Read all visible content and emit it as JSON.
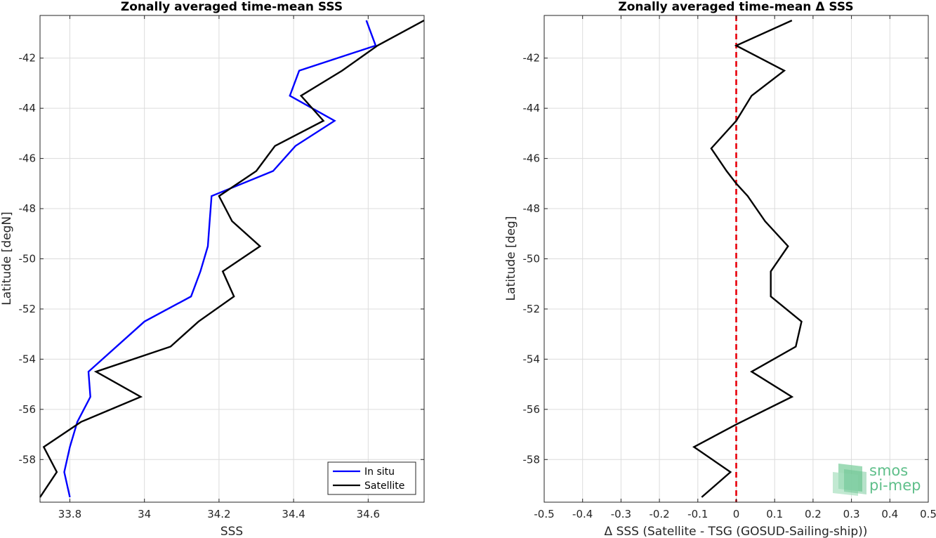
{
  "chart_data": [
    {
      "type": "line",
      "title": "Zonally averaged time-mean SSS",
      "xlabel": "SSS",
      "ylabel": "Latitude [degN]",
      "xlim": [
        33.72,
        34.75
      ],
      "ylim": [
        -59.7,
        -40.3
      ],
      "xticks": [
        33.8,
        34,
        34.2,
        34.4,
        34.6
      ],
      "xtick_labels": [
        "33.8",
        "34",
        "34.2",
        "34.4",
        "34.6"
      ],
      "yticks": [
        -42,
        -44,
        -46,
        -48,
        -50,
        -52,
        -54,
        -56,
        -58
      ],
      "ytick_labels": [
        "-42",
        "-44",
        "-46",
        "-48",
        "-50",
        "-52",
        "-54",
        "-56",
        "-58"
      ],
      "grid": true,
      "legend": "bottom-right",
      "series": [
        {
          "name": "In situ",
          "color": "#0000ff",
          "x": [
            34.595,
            34.62,
            34.415,
            34.39,
            34.51,
            34.405,
            34.345,
            34.18,
            34.175,
            34.17,
            34.15,
            34.125,
            34.0,
            33.85,
            33.855,
            33.82,
            33.8,
            33.785,
            33.8
          ],
          "y": [
            -40.5,
            -41.5,
            -42.5,
            -43.5,
            -44.5,
            -45.5,
            -46.5,
            -47.5,
            -48.5,
            -49.5,
            -50.5,
            -51.5,
            -52.5,
            -54.5,
            -55.5,
            -56.5,
            -57.5,
            -58.5,
            -59.5
          ]
        },
        {
          "name": "Satellite",
          "color": "#000000",
          "x": [
            34.75,
            34.625,
            34.53,
            34.42,
            34.48,
            34.35,
            34.3,
            34.2,
            34.235,
            34.31,
            34.21,
            34.24,
            34.145,
            34.07,
            33.87,
            33.99,
            33.83,
            33.73,
            33.765,
            33.72
          ],
          "y": [
            -40.5,
            -41.5,
            -42.5,
            -43.5,
            -44.5,
            -45.5,
            -46.5,
            -47.5,
            -48.5,
            -49.5,
            -50.5,
            -51.5,
            -52.5,
            -53.5,
            -54.5,
            -55.5,
            -56.5,
            -57.5,
            -58.5,
            -59.5
          ]
        }
      ]
    },
    {
      "type": "line",
      "title": "Zonally averaged time-mean Δ SSS",
      "xlabel": "Δ SSS (Satellite - TSG (GOSUD-Sailing-ship))",
      "ylabel": "Latitude [deg]",
      "xlim": [
        -0.5,
        0.5
      ],
      "ylim": [
        -59.7,
        -40.3
      ],
      "xticks": [
        -0.5,
        -0.4,
        -0.3,
        -0.2,
        -0.1,
        0,
        0.1,
        0.2,
        0.3,
        0.4,
        0.5
      ],
      "xtick_labels": [
        "-0.5",
        "-0.4",
        "-0.3",
        "-0.2",
        "-0.1",
        "0",
        "0.1",
        "0.2",
        "0.3",
        "0.4",
        "0.5"
      ],
      "yticks": [
        -42,
        -44,
        -46,
        -48,
        -50,
        -52,
        -54,
        -56,
        -58
      ],
      "ytick_labels": [
        "-42",
        "-44",
        "-46",
        "-48",
        "-50",
        "-52",
        "-54",
        "-56",
        "-58"
      ],
      "grid": true,
      "reference_line": {
        "x": 0,
        "color": "#e8000b",
        "style": "dashed"
      },
      "series": [
        {
          "color": "#000000",
          "x": [
            0.145,
            0.0,
            0.125,
            0.04,
            0.0,
            -0.065,
            -0.025,
            0.0,
            0.03,
            0.075,
            0.135,
            0.09,
            0.09,
            0.17,
            0.155,
            0.04,
            0.145,
            0.0,
            -0.11,
            -0.015,
            -0.09
          ],
          "y": [
            -40.5,
            -41.5,
            -42.5,
            -43.5,
            -44.5,
            -45.6,
            -46.5,
            -47.0,
            -47.5,
            -48.5,
            -49.5,
            -50.5,
            -51.5,
            -52.5,
            -53.5,
            -54.5,
            -55.5,
            -56.6,
            -57.5,
            -58.5,
            -59.5
          ]
        }
      ]
    }
  ],
  "logo": {
    "line1": "smos",
    "line2": "pi-mep",
    "color": "#5fbf8a"
  }
}
